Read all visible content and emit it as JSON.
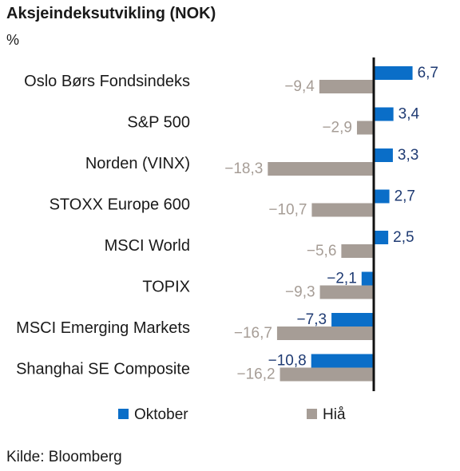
{
  "chart_data": {
    "type": "bar",
    "orientation": "horizontal",
    "title": "Aksjeindeksutvikling (NOK)",
    "unit": "%",
    "categories": [
      "Oslo Børs Fondsindeks",
      "S&P 500",
      "Norden (VINX)",
      "STOXX Europe 600",
      "MSCI World",
      "TOPIX",
      "MSCI Emerging Markets",
      "Shanghai SE Composite"
    ],
    "series": [
      {
        "name": "Oktober",
        "color": "#0a6ec8",
        "values": [
          6.7,
          3.4,
          3.3,
          2.7,
          2.5,
          -2.1,
          -7.3,
          -10.8
        ],
        "labels": [
          "6,7",
          "3,4",
          "3,3",
          "2,7",
          "2,5",
          "-2,1",
          "-7,3",
          "-10,8"
        ]
      },
      {
        "name": "Hiå",
        "color": "#a69d96",
        "values": [
          -9.4,
          -2.9,
          -18.3,
          -10.7,
          -5.6,
          -9.3,
          -16.7,
          -16.2
        ],
        "labels": [
          "-9,4",
          "-2,9",
          "-18,3",
          "-10,7",
          "-5,6",
          "-9,3",
          "-16,7",
          "-16,2"
        ]
      }
    ],
    "legend_position": "bottom",
    "grid": false,
    "source": "Kilde: Bloomberg"
  }
}
